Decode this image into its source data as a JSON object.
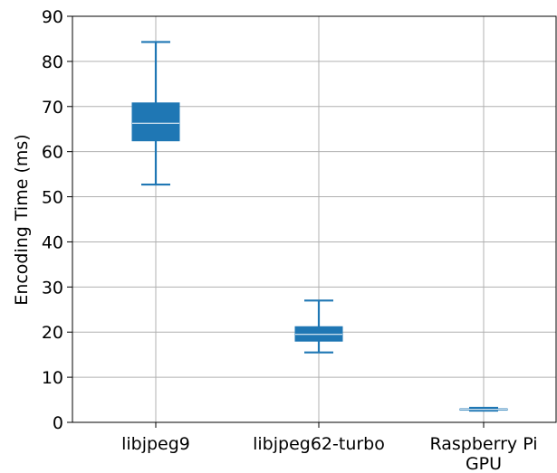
{
  "chart_data": {
    "type": "box",
    "title": "",
    "xlabel": "",
    "ylabel": "Encoding Time (ms)",
    "ylim": [
      0,
      90
    ],
    "yticks": [
      0,
      10,
      20,
      30,
      40,
      50,
      60,
      70,
      80,
      90
    ],
    "ytick_labels": [
      "0",
      "10",
      "20",
      "30",
      "40",
      "50",
      "60",
      "70",
      "80",
      "90"
    ],
    "grid": true,
    "box_color": "#1f77b4",
    "median_color": "#ffffff",
    "categories": [
      {
        "label_lines": [
          "libjpeg9"
        ],
        "whisker_low": 52.7,
        "q1": 62.4,
        "median": 66.3,
        "q3": 70.8,
        "whisker_high": 84.3
      },
      {
        "label_lines": [
          "libjpeg62-turbo"
        ],
        "whisker_low": 15.5,
        "q1": 18.0,
        "median": 19.5,
        "q3": 21.2,
        "whisker_high": 27.0
      },
      {
        "label_lines": [
          "Raspberry Pi",
          "GPU"
        ],
        "whisker_low": 2.6,
        "q1": 2.7,
        "median": 2.85,
        "q3": 3.0,
        "whisker_high": 3.2
      }
    ]
  }
}
